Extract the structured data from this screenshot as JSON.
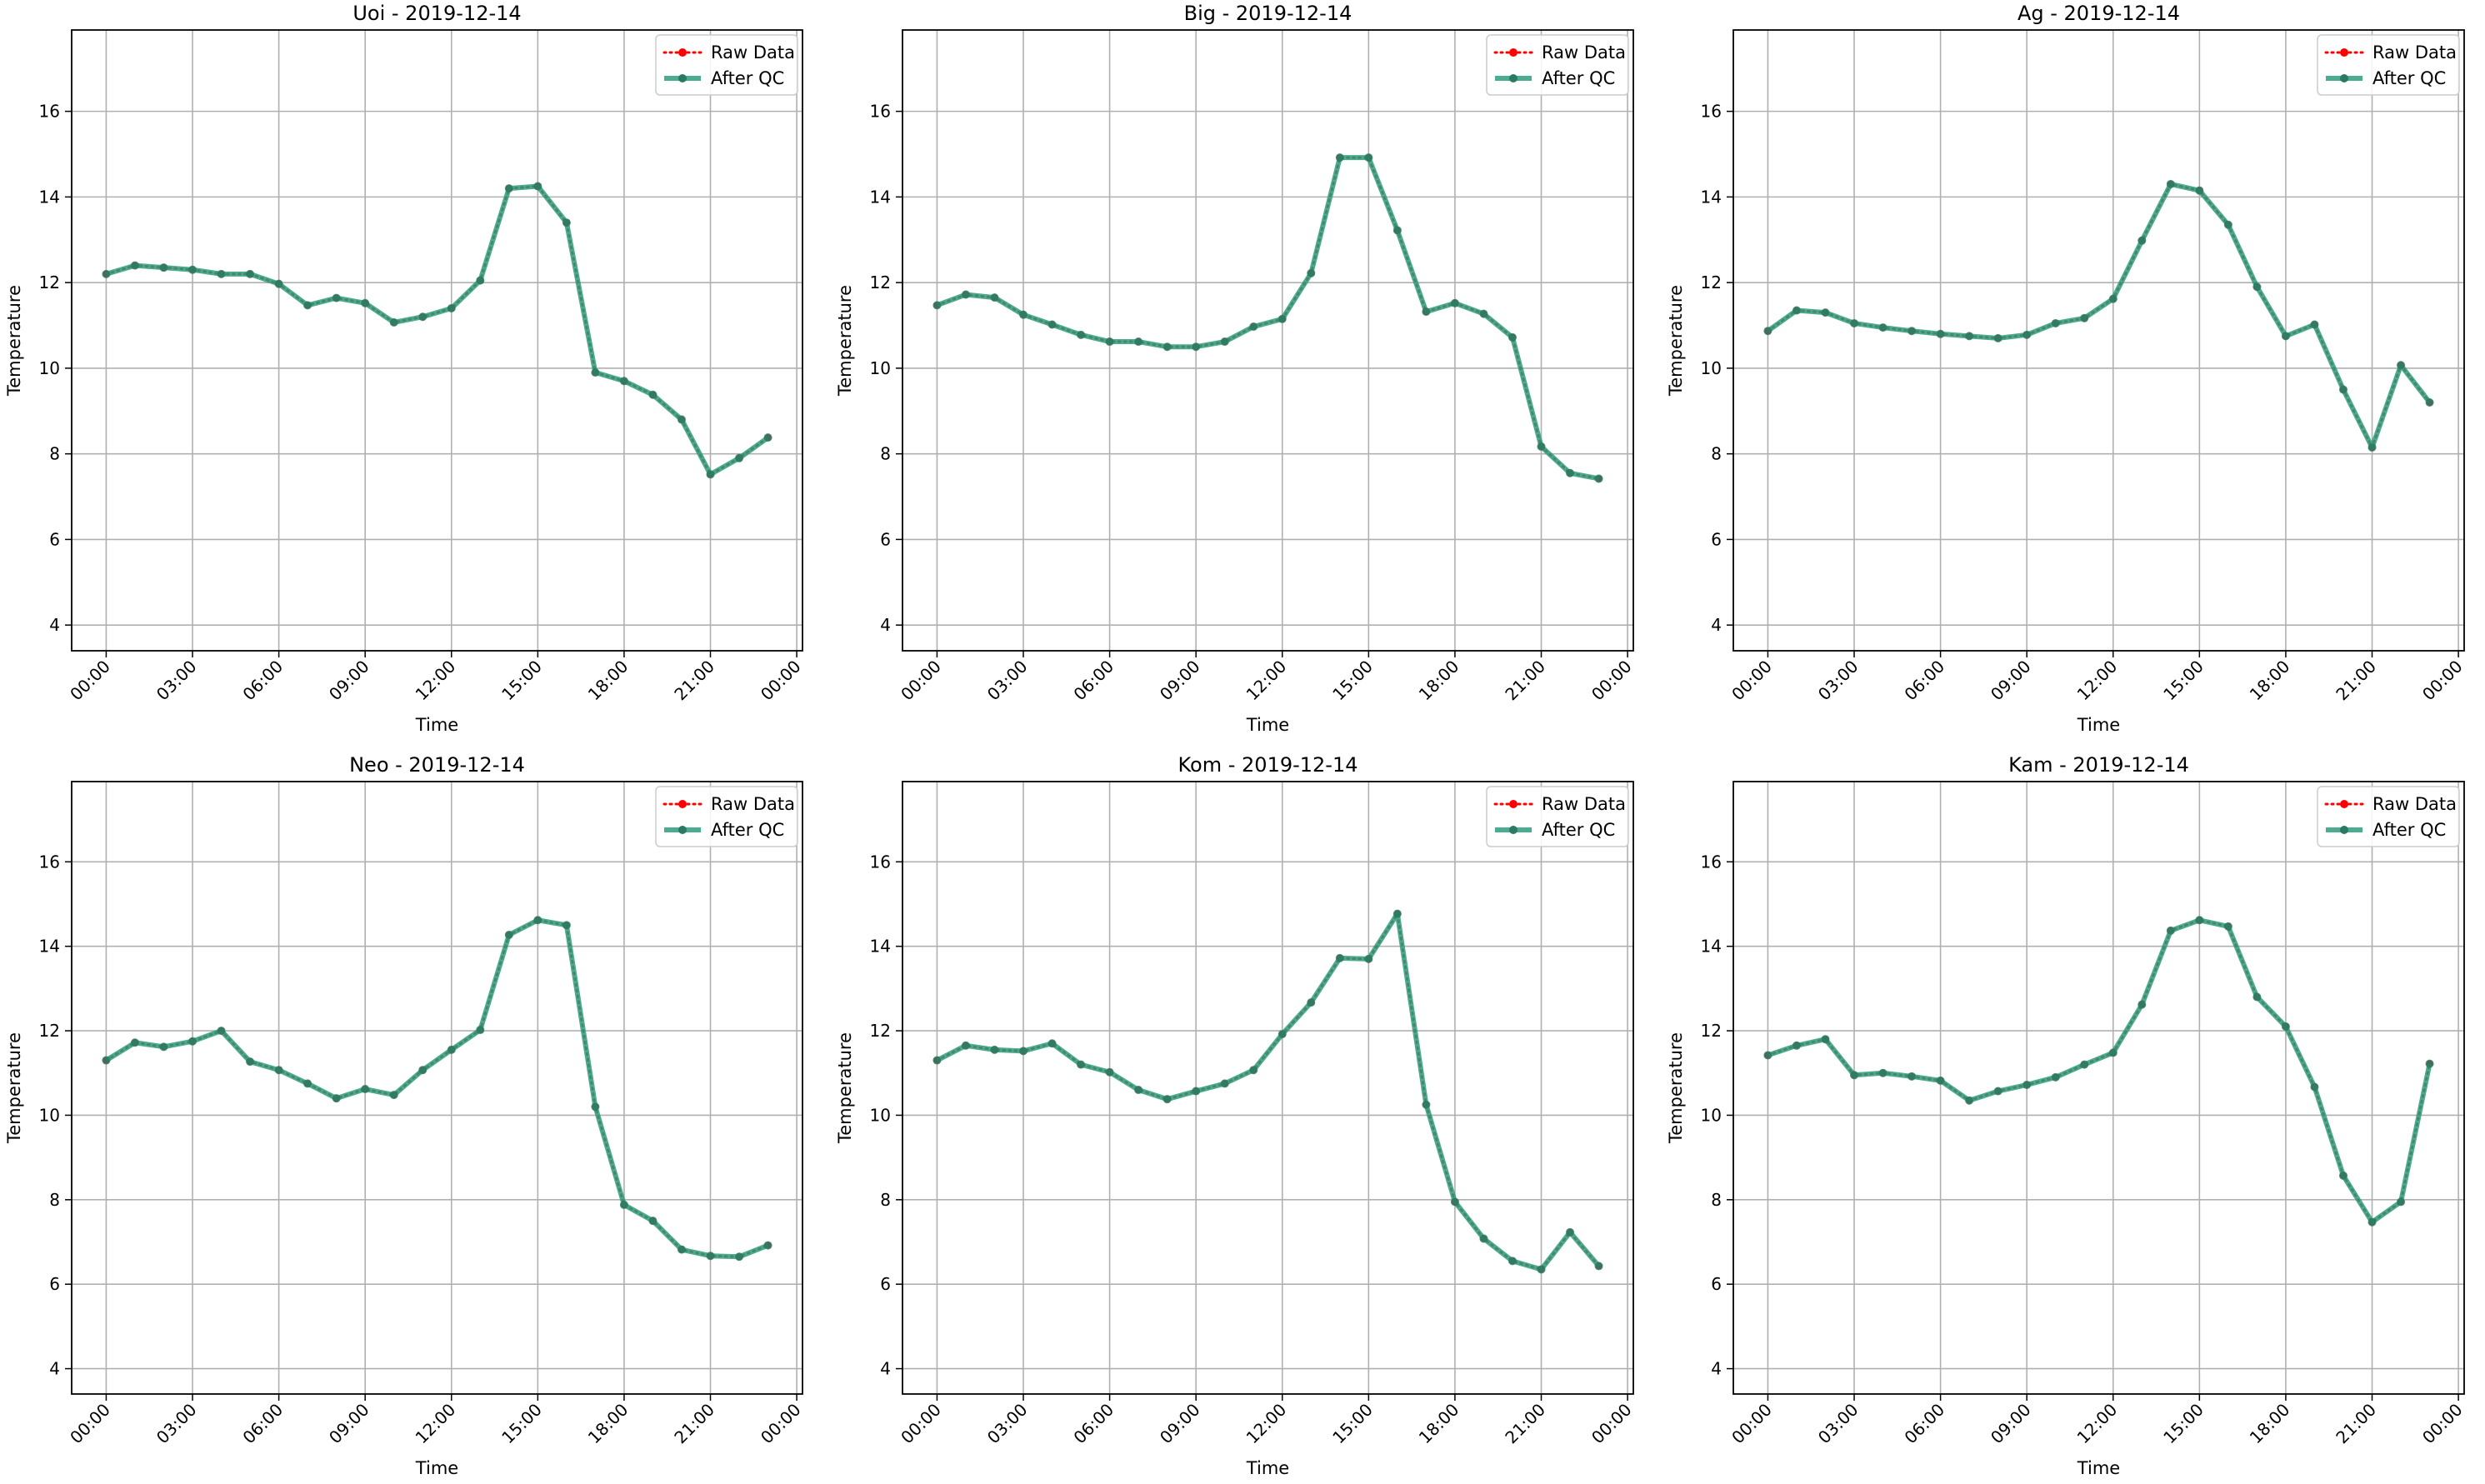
{
  "figure": {
    "layout": "2x3 grid of line charts",
    "legend_labels": [
      "Raw Data",
      "After QC"
    ],
    "colors": {
      "raw": "#ff0000",
      "qc": "#2a9d7c",
      "grid": "#b0b0b0",
      "axes": "#000000"
    }
  },
  "chart_data": [
    {
      "type": "line",
      "title": "Uoi - 2019-12-14",
      "xlabel": "Time",
      "ylabel": "Temperature",
      "x_hours": [
        0,
        1,
        2,
        3,
        4,
        5,
        6,
        7,
        8,
        9,
        10,
        11,
        12,
        13,
        14,
        15,
        16,
        17,
        18,
        19,
        20,
        21,
        22,
        23
      ],
      "xticks": [
        "00:00",
        "03:00",
        "06:00",
        "09:00",
        "12:00",
        "15:00",
        "18:00",
        "21:00",
        "00:00"
      ],
      "yticks": [
        4,
        6,
        8,
        10,
        12,
        14,
        16
      ],
      "ylim": [
        3.4,
        17.9
      ],
      "xlim": [
        -1.2,
        24.2
      ],
      "grid": true,
      "legend": "top-right",
      "series": [
        {
          "name": "Raw Data",
          "style": "dotted",
          "values": [
            12.2,
            12.4,
            12.35,
            12.3,
            12.2,
            12.2,
            11.97,
            11.47,
            11.64,
            11.52,
            11.07,
            11.2,
            11.4,
            12.05,
            14.2,
            14.25,
            13.4,
            9.9,
            9.7,
            9.38,
            8.8,
            7.52,
            7.9,
            8.38
          ]
        },
        {
          "name": "After QC",
          "style": "solid",
          "values": [
            12.2,
            12.4,
            12.35,
            12.3,
            12.2,
            12.2,
            11.97,
            11.47,
            11.64,
            11.52,
            11.07,
            11.2,
            11.4,
            12.05,
            14.2,
            14.25,
            13.4,
            9.9,
            9.7,
            9.38,
            8.8,
            7.52,
            7.9,
            8.38
          ]
        }
      ]
    },
    {
      "type": "line",
      "title": "Big - 2019-12-14",
      "xlabel": "Time",
      "ylabel": "Temperature",
      "x_hours": [
        0,
        1,
        2,
        3,
        4,
        5,
        6,
        7,
        8,
        9,
        10,
        11,
        12,
        13,
        14,
        15,
        16,
        17,
        18,
        19,
        20,
        21,
        22,
        23
      ],
      "xticks": [
        "00:00",
        "03:00",
        "06:00",
        "09:00",
        "12:00",
        "15:00",
        "18:00",
        "21:00",
        "00:00"
      ],
      "yticks": [
        4,
        6,
        8,
        10,
        12,
        14,
        16
      ],
      "ylim": [
        3.4,
        17.9
      ],
      "xlim": [
        -1.2,
        24.2
      ],
      "grid": true,
      "legend": "top-right",
      "series": [
        {
          "name": "Raw Data",
          "style": "dotted",
          "values": [
            11.47,
            11.72,
            11.65,
            11.25,
            11.02,
            10.78,
            10.62,
            10.62,
            10.5,
            10.5,
            10.62,
            10.97,
            11.15,
            12.22,
            14.92,
            14.92,
            13.22,
            11.32,
            11.52,
            11.27,
            10.72,
            8.17,
            7.55,
            7.42
          ]
        },
        {
          "name": "After QC",
          "style": "solid",
          "values": [
            11.47,
            11.72,
            11.65,
            11.25,
            11.02,
            10.78,
            10.62,
            10.62,
            10.5,
            10.5,
            10.62,
            10.97,
            11.15,
            12.22,
            14.92,
            14.92,
            13.22,
            11.32,
            11.52,
            11.27,
            10.72,
            8.17,
            7.55,
            7.42
          ]
        }
      ]
    },
    {
      "type": "line",
      "title": "Ag - 2019-12-14",
      "xlabel": "Time",
      "ylabel": "Temperature",
      "x_hours": [
        0,
        1,
        2,
        3,
        4,
        5,
        6,
        7,
        8,
        9,
        10,
        11,
        12,
        13,
        14,
        15,
        16,
        17,
        18,
        19,
        20,
        21,
        22,
        23
      ],
      "xticks": [
        "00:00",
        "03:00",
        "06:00",
        "09:00",
        "12:00",
        "15:00",
        "18:00",
        "21:00",
        "00:00"
      ],
      "yticks": [
        4,
        6,
        8,
        10,
        12,
        14,
        16
      ],
      "ylim": [
        3.4,
        17.9
      ],
      "xlim": [
        -1.2,
        24.2
      ],
      "grid": true,
      "legend": "top-right",
      "series": [
        {
          "name": "Raw Data",
          "style": "dotted",
          "values": [
            10.87,
            11.35,
            11.3,
            11.05,
            10.95,
            10.87,
            10.8,
            10.75,
            10.7,
            10.78,
            11.05,
            11.17,
            11.62,
            12.98,
            14.3,
            14.15,
            13.35,
            11.9,
            10.75,
            11.02,
            9.5,
            8.15,
            10.07,
            9.2
          ]
        },
        {
          "name": "After QC",
          "style": "solid",
          "values": [
            10.87,
            11.35,
            11.3,
            11.05,
            10.95,
            10.87,
            10.8,
            10.75,
            10.7,
            10.78,
            11.05,
            11.17,
            11.62,
            12.98,
            14.3,
            14.15,
            13.35,
            11.9,
            10.75,
            11.02,
            9.5,
            8.15,
            10.07,
            9.2
          ]
        }
      ]
    },
    {
      "type": "line",
      "title": "Neo - 2019-12-14",
      "xlabel": "Time",
      "ylabel": "Temperature",
      "x_hours": [
        0,
        1,
        2,
        3,
        4,
        5,
        6,
        7,
        8,
        9,
        10,
        11,
        12,
        13,
        14,
        15,
        16,
        17,
        18,
        19,
        20,
        21,
        22,
        23
      ],
      "xticks": [
        "00:00",
        "03:00",
        "06:00",
        "09:00",
        "12:00",
        "15:00",
        "18:00",
        "21:00",
        "00:00"
      ],
      "yticks": [
        4,
        6,
        8,
        10,
        12,
        14,
        16
      ],
      "ylim": [
        3.4,
        17.9
      ],
      "xlim": [
        -1.2,
        24.2
      ],
      "grid": true,
      "legend": "top-right",
      "series": [
        {
          "name": "Raw Data",
          "style": "dotted",
          "values": [
            11.3,
            11.72,
            11.62,
            11.75,
            12.0,
            11.27,
            11.07,
            10.75,
            10.4,
            10.62,
            10.48,
            11.07,
            11.55,
            12.02,
            14.27,
            14.62,
            14.5,
            10.2,
            7.88,
            7.5,
            6.82,
            6.67,
            6.65,
            6.92
          ]
        },
        {
          "name": "After QC",
          "style": "solid",
          "values": [
            11.3,
            11.72,
            11.62,
            11.75,
            12.0,
            11.27,
            11.07,
            10.75,
            10.4,
            10.62,
            10.48,
            11.07,
            11.55,
            12.02,
            14.27,
            14.62,
            14.5,
            10.2,
            7.88,
            7.5,
            6.82,
            6.67,
            6.65,
            6.92
          ]
        }
      ]
    },
    {
      "type": "line",
      "title": "Kom - 2019-12-14",
      "xlabel": "Time",
      "ylabel": "Temperature",
      "x_hours": [
        0,
        1,
        2,
        3,
        4,
        5,
        6,
        7,
        8,
        9,
        10,
        11,
        12,
        13,
        14,
        15,
        16,
        17,
        18,
        19,
        20,
        21,
        22,
        23
      ],
      "xticks": [
        "00:00",
        "03:00",
        "06:00",
        "09:00",
        "12:00",
        "15:00",
        "18:00",
        "21:00",
        "00:00"
      ],
      "yticks": [
        4,
        6,
        8,
        10,
        12,
        14,
        16
      ],
      "ylim": [
        3.4,
        17.9
      ],
      "xlim": [
        -1.2,
        24.2
      ],
      "grid": true,
      "legend": "top-right",
      "series": [
        {
          "name": "Raw Data",
          "style": "dotted",
          "values": [
            11.3,
            11.65,
            11.55,
            11.52,
            11.7,
            11.2,
            11.02,
            10.6,
            10.38,
            10.57,
            10.75,
            11.07,
            11.92,
            12.67,
            13.72,
            13.7,
            14.77,
            10.25,
            7.95,
            7.08,
            6.55,
            6.35,
            7.23,
            6.43
          ]
        },
        {
          "name": "After QC",
          "style": "solid",
          "values": [
            11.3,
            11.65,
            11.55,
            11.52,
            11.7,
            11.2,
            11.02,
            10.6,
            10.38,
            10.57,
            10.75,
            11.07,
            11.92,
            12.67,
            13.72,
            13.7,
            14.77,
            10.25,
            7.95,
            7.08,
            6.55,
            6.35,
            7.23,
            6.43
          ]
        }
      ]
    },
    {
      "type": "line",
      "title": "Kam - 2019-12-14",
      "xlabel": "Time",
      "ylabel": "Temperature",
      "x_hours": [
        0,
        1,
        2,
        3,
        4,
        5,
        6,
        7,
        8,
        9,
        10,
        11,
        12,
        13,
        14,
        15,
        16,
        17,
        18,
        19,
        20,
        21,
        22,
        23
      ],
      "xticks": [
        "00:00",
        "03:00",
        "06:00",
        "09:00",
        "12:00",
        "15:00",
        "18:00",
        "21:00",
        "00:00"
      ],
      "yticks": [
        4,
        6,
        8,
        10,
        12,
        14,
        16
      ],
      "ylim": [
        3.4,
        17.9
      ],
      "xlim": [
        -1.2,
        24.2
      ],
      "grid": true,
      "legend": "top-right",
      "series": [
        {
          "name": "Raw Data",
          "style": "dotted",
          "values": [
            11.42,
            11.65,
            11.8,
            10.95,
            11.0,
            10.92,
            10.82,
            10.35,
            10.57,
            10.72,
            10.9,
            11.2,
            11.48,
            12.62,
            14.37,
            14.62,
            14.47,
            12.8,
            12.1,
            10.67,
            8.57,
            7.47,
            7.95,
            11.22
          ]
        },
        {
          "name": "After QC",
          "style": "solid",
          "values": [
            11.42,
            11.65,
            11.8,
            10.95,
            11.0,
            10.92,
            10.82,
            10.35,
            10.57,
            10.72,
            10.9,
            11.2,
            11.48,
            12.62,
            14.37,
            14.62,
            14.47,
            12.8,
            12.1,
            10.67,
            8.57,
            7.47,
            7.95,
            11.22
          ]
        }
      ]
    }
  ]
}
